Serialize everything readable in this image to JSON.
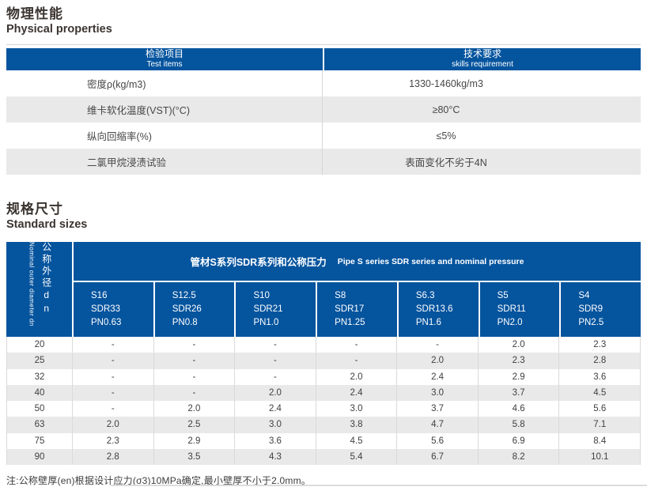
{
  "colors": {
    "header_blue": "#05549e",
    "row_gray": "#e9e9e9",
    "border_gray": "#d6d6d6",
    "title_text": "#3b3531"
  },
  "section1": {
    "title_zh": "物理性能",
    "title_en": "Physical properties"
  },
  "section2": {
    "title_zh": "规格尺寸",
    "title_en": "Standard sizes"
  },
  "physical_table": {
    "header": {
      "col1_zh": "检验项目",
      "col1_en": "Test items",
      "col2_zh": "技术要求",
      "col2_en": "skills requirement"
    },
    "rows": [
      {
        "item": "密度ρ(kg/m3)",
        "requirement": "1330-1460kg/m3"
      },
      {
        "item": "维卡软化温度(VST)(°C)",
        "requirement": "≥80°C"
      },
      {
        "item": "纵向回缩率(%)",
        "requirement": "≤5%"
      },
      {
        "item": "二氯甲烷浸渍试验",
        "requirement": "表面变化不劣于4N"
      }
    ]
  },
  "sizes_table": {
    "corner_zh": "公称外径dn",
    "corner_en": "Nominal outer diameter dn",
    "group_header_zh": "管材S系列SDR系列和公称压力",
    "group_header_en": "Pipe S series SDR series and nominal pressure",
    "columns": [
      {
        "s": "S16",
        "sdr": "SDR33",
        "pn": "PN0.63"
      },
      {
        "s": "S12.5",
        "sdr": "SDR26",
        "pn": "PN0.8"
      },
      {
        "s": "S10",
        "sdr": "SDR21",
        "pn": "PN1.0"
      },
      {
        "s": "S8",
        "sdr": "SDR17",
        "pn": "PN1.25"
      },
      {
        "s": "S6.3",
        "sdr": "SDR13.6",
        "pn": "PN1.6"
      },
      {
        "s": "S5",
        "sdr": "SDR11",
        "pn": "PN2.0"
      },
      {
        "s": "S4",
        "sdr": "SDR9",
        "pn": "PN2.5"
      }
    ],
    "rows": [
      {
        "dn": "20",
        "values": [
          "-",
          "-",
          "-",
          "-",
          "-",
          "2.0",
          "2.3"
        ]
      },
      {
        "dn": "25",
        "values": [
          "-",
          "-",
          "-",
          "-",
          "2.0",
          "2.3",
          "2.8"
        ]
      },
      {
        "dn": "32",
        "values": [
          "-",
          "-",
          "-",
          "2.0",
          "2.4",
          "2.9",
          "3.6"
        ]
      },
      {
        "dn": "40",
        "values": [
          "-",
          "-",
          "2.0",
          "2.4",
          "3.0",
          "3.7",
          "4.5"
        ]
      },
      {
        "dn": "50",
        "values": [
          "-",
          "2.0",
          "2.4",
          "3.0",
          "3.7",
          "4.6",
          "5.6"
        ]
      },
      {
        "dn": "63",
        "values": [
          "2.0",
          "2.5",
          "3.0",
          "3.8",
          "4.7",
          "5.8",
          "7.1"
        ]
      },
      {
        "dn": "75",
        "values": [
          "2.3",
          "2.9",
          "3.6",
          "4.5",
          "5.6",
          "6.9",
          "8.4"
        ]
      },
      {
        "dn": "90",
        "values": [
          "2.8",
          "3.5",
          "4.3",
          "5.4",
          "6.7",
          "8.2",
          "10.1"
        ]
      }
    ]
  },
  "note": "注:公称壁厚(en)根据设计应力(σ3)10MPa确定,最小壁厚不小于2.0mm。"
}
